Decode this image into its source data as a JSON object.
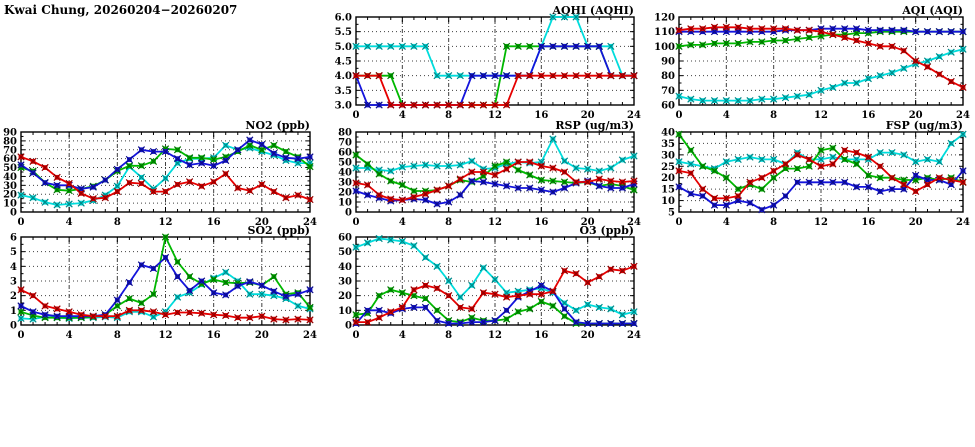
{
  "page": {
    "title": "Kwai Chung, 20260204−20260207"
  },
  "palette": {
    "red": "#e60000",
    "green": "#00b800",
    "blue": "#1414dc",
    "cyan": "#00dcdc"
  },
  "chart_data": [
    {
      "id": "aqhi",
      "type": "line",
      "title": "AQHI (AQHI)",
      "xlabel": "",
      "ylabel": "",
      "xlim": [
        0,
        24
      ],
      "xticks": [
        0,
        4,
        8,
        12,
        16,
        20,
        24
      ],
      "ylim": [
        3,
        6
      ],
      "ytick_step": 0.5,
      "ytick_labels": [
        "3.0",
        "3.5",
        "4.0",
        "4.5",
        "5.0",
        "5.5",
        "6.0"
      ],
      "grid": true,
      "legend": "none",
      "series": [
        {
          "name": "day-cyan",
          "color": "cyan",
          "values": [
            5,
            5,
            5,
            5,
            5,
            5,
            5,
            4,
            4,
            4,
            4,
            4,
            4,
            4,
            4,
            4,
            5,
            6,
            6,
            6,
            5,
            5,
            5,
            4,
            4
          ]
        },
        {
          "name": "day-green",
          "color": "green",
          "values": [
            4,
            4,
            4,
            4,
            3,
            3,
            3,
            3,
            3,
            3,
            3,
            3,
            3,
            5,
            5,
            5,
            5,
            5,
            5,
            5,
            5,
            5,
            4,
            4,
            4
          ]
        },
        {
          "name": "day-blue",
          "color": "blue",
          "values": [
            4,
            3,
            3,
            3,
            3,
            3,
            3,
            3,
            3,
            3,
            4,
            4,
            4,
            4,
            4,
            4,
            5,
            5,
            5,
            5,
            5,
            5,
            4,
            4,
            4
          ]
        },
        {
          "name": "day-red",
          "color": "red",
          "values": [
            4,
            4,
            4,
            3,
            3,
            3,
            3,
            3,
            3,
            3,
            3,
            3,
            3,
            3,
            4,
            4,
            4,
            4,
            4,
            4,
            4,
            4,
            4,
            4,
            4
          ]
        }
      ]
    },
    {
      "id": "aqi",
      "type": "line",
      "title": "AQI (AQI)",
      "xlabel": "",
      "ylabel": "",
      "xlim": [
        0,
        24
      ],
      "xticks": [
        0,
        4,
        8,
        12,
        16,
        20,
        24
      ],
      "ylim": [
        60,
        120
      ],
      "ytick_step": 10,
      "ytick_labels": [
        "60",
        "70",
        "80",
        "90",
        "100",
        "110",
        "120"
      ],
      "grid": true,
      "legend": "none",
      "series": [
        {
          "name": "day-cyan",
          "color": "cyan",
          "values": [
            66,
            64,
            63,
            63,
            63,
            63,
            63,
            64,
            64,
            65,
            66,
            67,
            70,
            72,
            75,
            75,
            78,
            80,
            82,
            85,
            88,
            90,
            93,
            96,
            98
          ]
        },
        {
          "name": "day-green",
          "color": "green",
          "values": [
            100,
            101,
            101,
            102,
            102,
            102,
            103,
            103,
            104,
            104,
            105,
            106,
            107,
            108,
            108,
            109,
            109,
            110,
            110,
            110,
            110,
            110,
            110,
            110,
            110
          ]
        },
        {
          "name": "day-blue",
          "color": "blue",
          "values": [
            110,
            110,
            110,
            110,
            110,
            110,
            110,
            110,
            110,
            111,
            111,
            111,
            112,
            112,
            112,
            112,
            111,
            111,
            111,
            111,
            110,
            110,
            110,
            110,
            110
          ]
        },
        {
          "name": "day-red",
          "color": "red",
          "values": [
            111,
            112,
            112,
            113,
            113,
            113,
            112,
            112,
            112,
            112,
            111,
            111,
            110,
            108,
            106,
            104,
            102,
            100,
            100,
            97,
            90,
            86,
            81,
            76,
            72
          ]
        }
      ]
    },
    {
      "id": "no2",
      "type": "line",
      "title": "NO2 (ppb)",
      "xlabel": "",
      "ylabel": "",
      "xlim": [
        0,
        24
      ],
      "xticks": [
        0,
        4,
        8,
        12,
        16,
        20,
        24
      ],
      "ylim": [
        0,
        90
      ],
      "ytick_step": 10,
      "ytick_labels": [
        "0",
        "10",
        "20",
        "30",
        "40",
        "50",
        "60",
        "70",
        "80",
        "90"
      ],
      "grid": true,
      "legend": "none",
      "series": [
        {
          "name": "day-cyan",
          "color": "cyan",
          "values": [
            19,
            16,
            11,
            8,
            9,
            10,
            13,
            19,
            29,
            51,
            39,
            26,
            38,
            55,
            60,
            60,
            61,
            75,
            70,
            72,
            68,
            64,
            58,
            55,
            55
          ]
        },
        {
          "name": "day-green",
          "color": "green",
          "values": [
            50,
            46,
            33,
            25,
            24,
            26,
            29,
            36,
            46,
            52,
            52,
            57,
            71,
            70,
            61,
            61,
            59,
            62,
            68,
            75,
            70,
            75,
            68,
            62,
            51
          ]
        },
        {
          "name": "day-blue",
          "color": "blue",
          "values": [
            53,
            44,
            33,
            30,
            30,
            26,
            28,
            36,
            48,
            59,
            70,
            68,
            68,
            60,
            53,
            55,
            52,
            58,
            70,
            81,
            76,
            66,
            61,
            60,
            62
          ]
        },
        {
          "name": "day-red",
          "color": "red",
          "values": [
            62,
            57,
            50,
            39,
            32,
            21,
            15,
            16,
            23,
            33,
            32,
            23,
            23,
            31,
            34,
            29,
            34,
            43,
            27,
            24,
            31,
            23,
            16,
            19,
            14
          ]
        }
      ]
    },
    {
      "id": "rsp",
      "type": "line",
      "title": "RSP (ug/m3)",
      "xlabel": "",
      "ylabel": "",
      "xlim": [
        0,
        24
      ],
      "xticks": [
        0,
        4,
        8,
        12,
        16,
        20,
        24
      ],
      "ylim": [
        0,
        80
      ],
      "ytick_step": 10,
      "ytick_labels": [
        "0",
        "10",
        "20",
        "30",
        "40",
        "50",
        "60",
        "70",
        "80"
      ],
      "grid": true,
      "legend": "none",
      "series": [
        {
          "name": "day-cyan",
          "color": "cyan",
          "values": [
            44,
            44,
            42,
            41,
            45,
            46,
            47,
            46,
            46,
            47,
            51,
            43,
            44,
            48,
            50,
            49,
            50,
            73,
            51,
            44,
            43,
            41,
            44,
            52,
            56
          ]
        },
        {
          "name": "day-green",
          "color": "green",
          "values": [
            57,
            48,
            38,
            31,
            27,
            21,
            21,
            22,
            26,
            32,
            30,
            36,
            46,
            50,
            42,
            37,
            32,
            31,
            30,
            29,
            30,
            26,
            28,
            26,
            22
          ]
        },
        {
          "name": "day-blue",
          "color": "blue",
          "values": [
            21,
            17,
            14,
            11,
            12,
            13,
            12,
            8,
            10,
            17,
            31,
            30,
            28,
            26,
            24,
            24,
            22,
            20,
            24,
            29,
            31,
            26,
            24,
            24,
            28
          ]
        },
        {
          "name": "day-red",
          "color": "red",
          "values": [
            29,
            27,
            17,
            13,
            12,
            15,
            18,
            22,
            26,
            33,
            40,
            40,
            37,
            43,
            50,
            50,
            46,
            44,
            40,
            30,
            30,
            33,
            31,
            30,
            31
          ]
        }
      ]
    },
    {
      "id": "fsp",
      "type": "line",
      "title": "FSP (ug/m3)",
      "xlabel": "",
      "ylabel": "",
      "xlim": [
        0,
        24
      ],
      "xticks": [
        0,
        4,
        8,
        12,
        16,
        20,
        24
      ],
      "ylim": [
        5,
        40
      ],
      "ytick_step": 5,
      "ytick_labels": [
        "5",
        "10",
        "15",
        "20",
        "25",
        "30",
        "35",
        "40"
      ],
      "grid": true,
      "legend": "none",
      "series": [
        {
          "name": "day-cyan",
          "color": "cyan",
          "values": [
            27,
            26,
            25,
            24,
            27,
            28,
            29,
            28,
            28,
            26,
            31,
            28,
            28,
            29,
            28,
            28,
            28,
            31,
            31,
            30,
            27,
            28,
            27,
            35,
            39
          ]
        },
        {
          "name": "day-green",
          "color": "green",
          "values": [
            39,
            32,
            25,
            23,
            20,
            15,
            17,
            15,
            20,
            24,
            24,
            25,
            32,
            33,
            28,
            26,
            21,
            20,
            20,
            19,
            19,
            20,
            19,
            20,
            18
          ]
        },
        {
          "name": "day-blue",
          "color": "blue",
          "values": [
            16,
            13,
            12,
            8,
            8,
            10,
            9,
            6,
            8,
            12,
            18,
            18,
            18,
            18,
            18,
            16,
            16,
            14,
            15,
            15,
            21,
            19,
            19,
            17,
            23
          ]
        },
        {
          "name": "day-red",
          "color": "red",
          "values": [
            23,
            22,
            15,
            11,
            11,
            12,
            18,
            20,
            23,
            26,
            30,
            28,
            25,
            26,
            32,
            31,
            29,
            25,
            20,
            17,
            14,
            17,
            20,
            19,
            18
          ]
        }
      ]
    },
    {
      "id": "so2",
      "type": "line",
      "title": "SO2 (ppb)",
      "xlabel": "",
      "ylabel": "",
      "xlim": [
        0,
        24
      ],
      "xticks": [
        0,
        4,
        8,
        12,
        16,
        20,
        24
      ],
      "ylim": [
        0,
        6
      ],
      "ytick_step": 1,
      "ytick_labels": [
        "0",
        "1",
        "2",
        "3",
        "4",
        "5",
        "6"
      ],
      "grid": true,
      "legend": "none",
      "series": [
        {
          "name": "day-cyan",
          "color": "cyan",
          "values": [
            0.45,
            0.4,
            0.55,
            0.5,
            0.45,
            0.5,
            0.5,
            0.55,
            0.5,
            0.9,
            0.9,
            0.55,
            0.9,
            1.9,
            2.2,
            2.75,
            3.2,
            3.6,
            3.0,
            2.1,
            2.1,
            2.0,
            1.8,
            1.3,
            1.1
          ]
        },
        {
          "name": "day-green",
          "color": "green",
          "values": [
            0.9,
            0.65,
            0.5,
            0.5,
            0.5,
            0.5,
            0.55,
            0.7,
            1.3,
            1.8,
            1.5,
            2.1,
            6.0,
            4.3,
            3.3,
            2.8,
            3.1,
            2.9,
            2.85,
            2.9,
            2.7,
            3.3,
            2.1,
            2.2,
            1.2
          ]
        },
        {
          "name": "day-blue",
          "color": "blue",
          "values": [
            1.3,
            0.9,
            0.7,
            0.6,
            0.6,
            0.6,
            0.6,
            0.7,
            1.7,
            2.9,
            4.1,
            3.85,
            4.6,
            3.3,
            2.35,
            3.0,
            2.2,
            2.05,
            2.65,
            2.95,
            2.7,
            2.3,
            1.95,
            2.1,
            2.4
          ]
        },
        {
          "name": "day-red",
          "color": "red",
          "values": [
            2.4,
            2.0,
            1.3,
            1.1,
            0.9,
            0.7,
            0.6,
            0.6,
            0.6,
            1.0,
            1.0,
            0.9,
            0.7,
            0.85,
            0.85,
            0.8,
            0.7,
            0.65,
            0.5,
            0.5,
            0.6,
            0.4,
            0.35,
            0.4,
            0.35
          ]
        }
      ]
    },
    {
      "id": "o3",
      "type": "line",
      "title": "O3 (ppb)",
      "xlabel": "",
      "ylabel": "",
      "xlim": [
        0,
        24
      ],
      "xticks": [
        0,
        4,
        8,
        12,
        16,
        20,
        24
      ],
      "ylim": [
        0,
        60
      ],
      "ytick_step": 10,
      "ytick_labels": [
        "0",
        "10",
        "20",
        "30",
        "40",
        "50",
        "60"
      ],
      "grid": true,
      "legend": "none",
      "series": [
        {
          "name": "day-cyan",
          "color": "cyan",
          "values": [
            53,
            56,
            59,
            58,
            57,
            54,
            46,
            40,
            30,
            19,
            27,
            39,
            31,
            22,
            23,
            24,
            25,
            22,
            15,
            10,
            14,
            12,
            11,
            7,
            9
          ]
        },
        {
          "name": "day-green",
          "color": "green",
          "values": [
            7,
            8,
            20,
            24,
            22,
            20,
            18,
            10,
            3,
            2,
            5,
            3,
            3,
            4,
            9,
            11,
            16,
            13,
            6,
            1,
            1,
            1,
            1,
            1,
            1
          ]
        },
        {
          "name": "day-blue",
          "color": "blue",
          "values": [
            1,
            10,
            10,
            8,
            11,
            12,
            12,
            3,
            1,
            1,
            2,
            2,
            3,
            10,
            19,
            23,
            27,
            23,
            11,
            2,
            1,
            1,
            1,
            1,
            1
          ]
        },
        {
          "name": "day-red",
          "color": "red",
          "values": [
            2,
            2,
            5,
            9,
            12,
            24,
            27,
            25,
            20,
            12,
            11,
            22,
            21,
            19,
            20,
            21,
            21,
            23,
            37,
            35,
            29,
            33,
            38,
            37,
            40
          ]
        }
      ]
    }
  ]
}
